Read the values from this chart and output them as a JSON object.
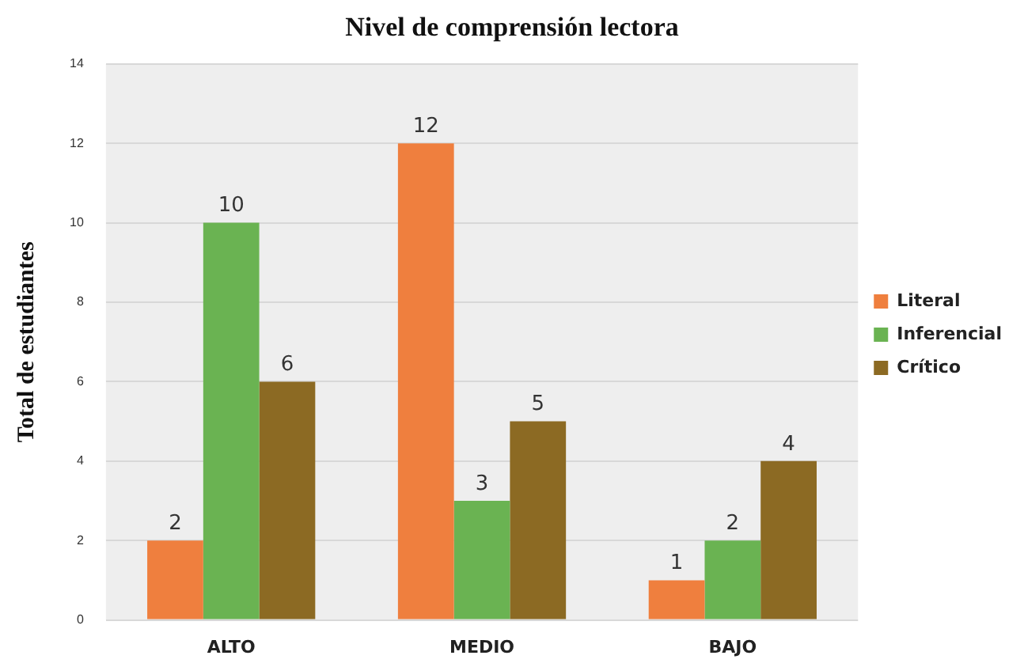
{
  "chart_data": {
    "type": "bar",
    "title": "Nivel de comprensión lectora",
    "ylabel": "Total de estudiantes",
    "categories": [
      "ALTO",
      "MEDIO",
      "BAJO"
    ],
    "series": [
      {
        "name": "Literal",
        "color": "#ef7f3e",
        "values": [
          2,
          12,
          1
        ]
      },
      {
        "name": "Inferencial",
        "color": "#6ab352",
        "values": [
          10,
          3,
          2
        ]
      },
      {
        "name": "Crítico",
        "color": "#8c6a23",
        "values": [
          6,
          5,
          4
        ]
      }
    ],
    "ylim": [
      0,
      14
    ],
    "yticks": [
      0,
      2,
      4,
      6,
      8,
      10,
      12,
      14
    ],
    "grid": "y",
    "legend": "right",
    "data_labels": true
  }
}
